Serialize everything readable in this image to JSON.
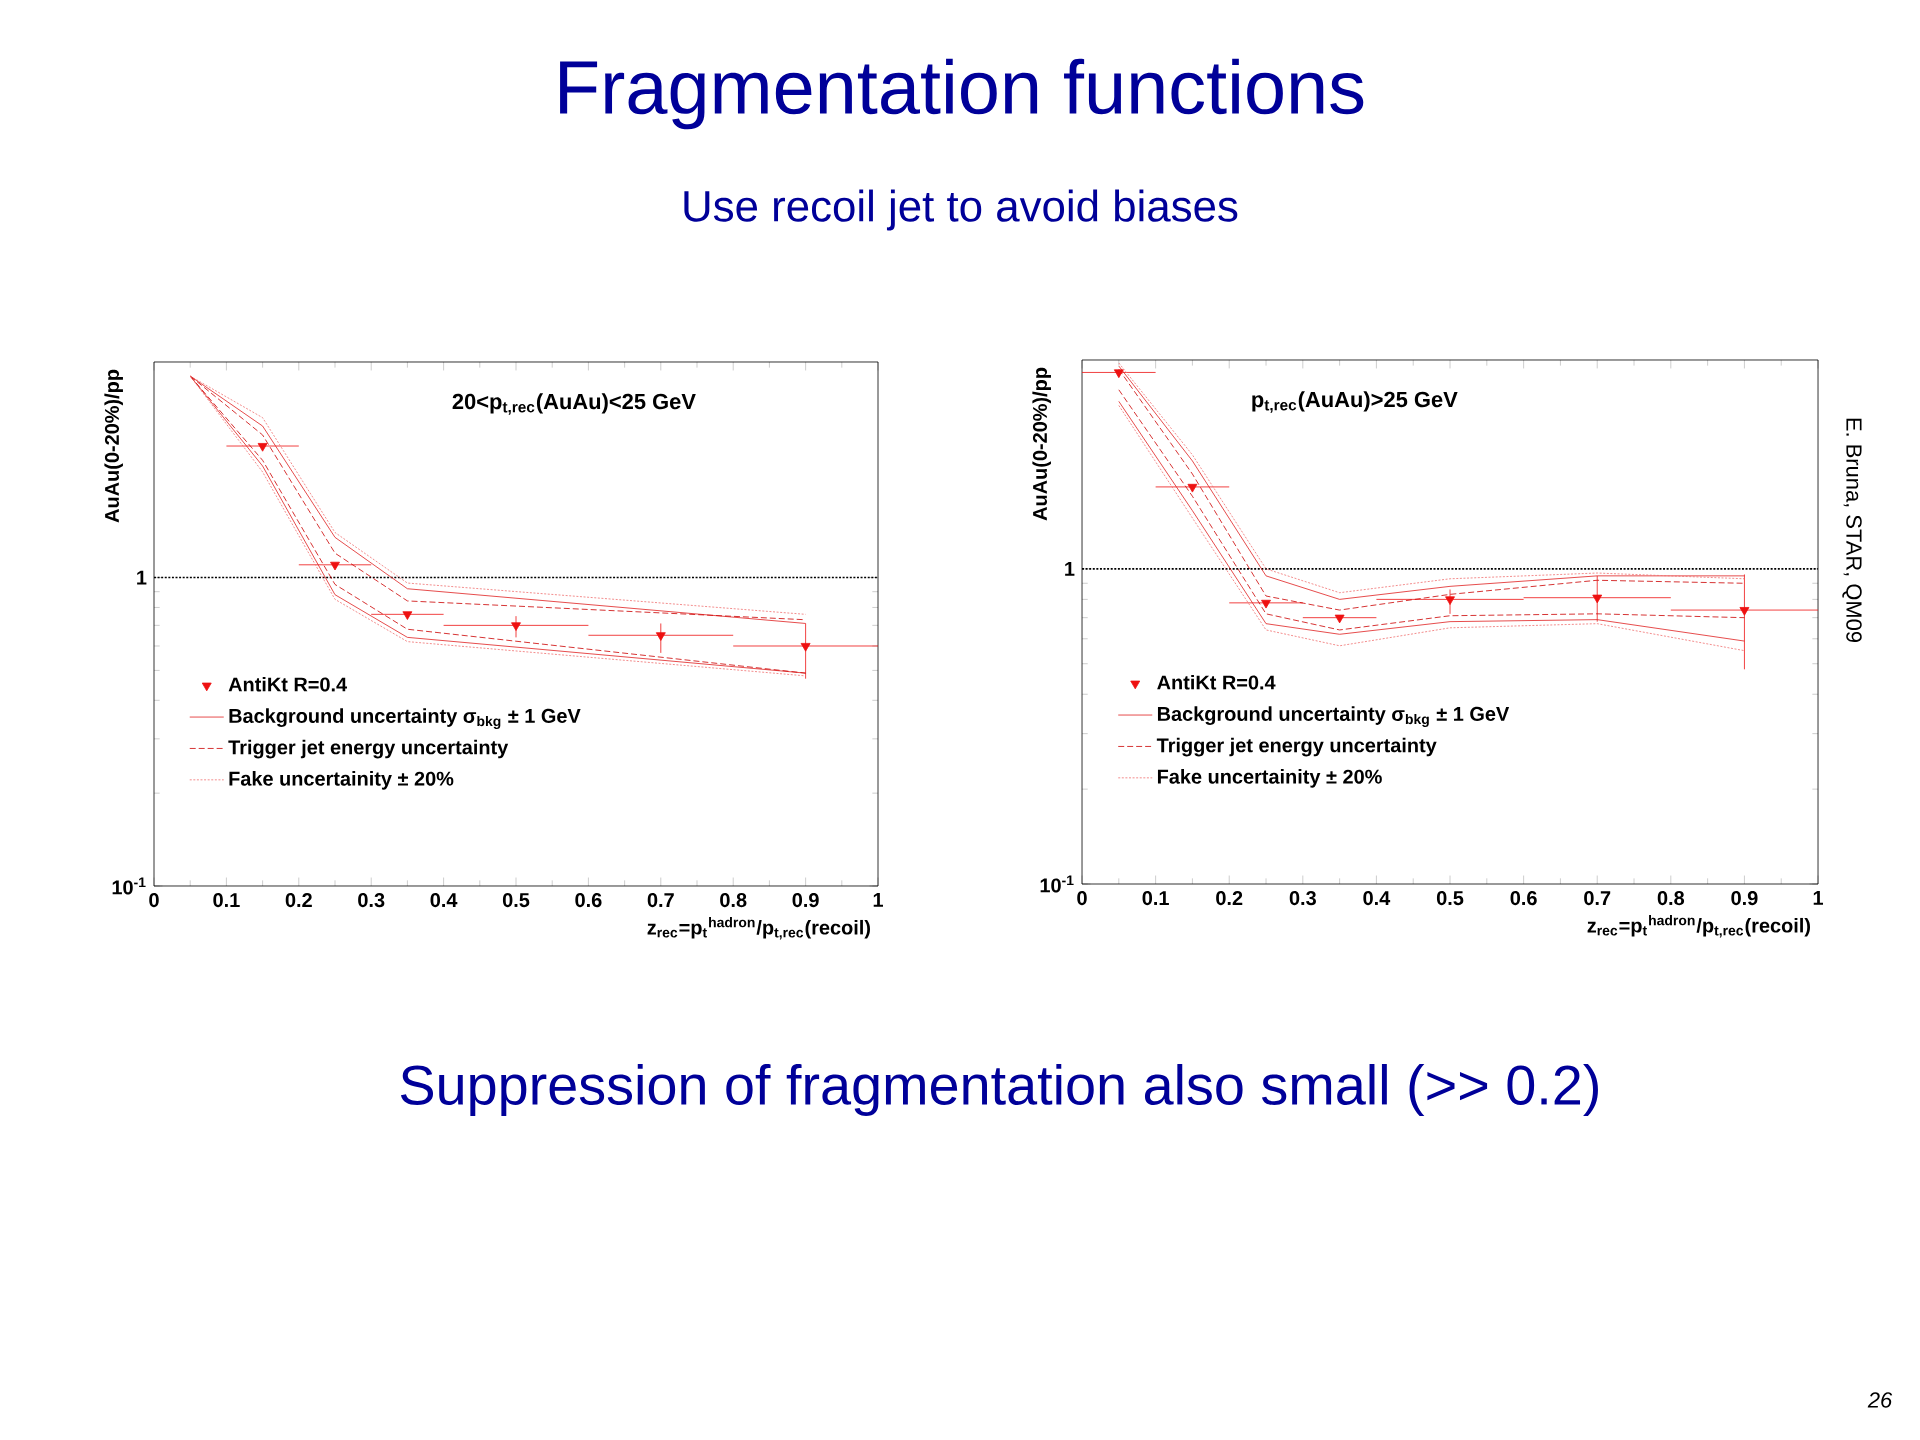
{
  "chart_data": [
    {
      "type": "scatter",
      "title": "Fragmentation functions",
      "subtitle": "Use recoil jet to avoid biases",
      "xlabel": "z$_{rec}$=p$_{t}$$^{hadron}$/p$_{t,rec}$(recoil)",
      "ylabel": "AuAu(0-20%)/pp",
      "log": "y",
      "xlim": [
        0,
        1
      ],
      "ylim": [
        0.1,
        5
      ],
      "xticks": [
        0,
        0.1,
        0.2,
        0.3,
        0.4,
        0.5,
        0.6,
        0.7,
        0.8,
        0.9,
        1
      ],
      "yticks": [
        {
          "value": 0.1,
          "label": "10$^{-1}$"
        },
        1
      ],
      "legend": "bottom left",
      "grid": false,
      "annotations": [
        "20<p$_{t,rec}$(AuAu)<25  GeV"
      ],
      "ref_lines": [
        {
          "axis": "y",
          "value": 1,
          "color": "#000000",
          "line_style": "dotted"
        }
      ],
      "series": [
        {
          "name": "AntiKt R=0.4",
          "marker": "triangle",
          "color": "#ee1111",
          "x": [
            0.15,
            0.25,
            0.35,
            0.5,
            0.7,
            0.9
          ],
          "values": [
            2.67,
            1.1,
            0.76,
            0.7,
            0.65,
            0.6
          ],
          "xerrors": [
            0.05,
            0.05,
            0.05,
            0.1,
            0.1,
            0.1
          ],
          "errors": [
            null,
            null,
            null,
            [
              0.64,
              0.75
            ],
            [
              0.57,
              0.71
            ],
            [
              0.47,
              0.71
            ]
          ]
        },
        {
          "name": "Background uncertainty σ$_{bkg}$ ± 1 GeV",
          "type": "line",
          "line_style": "solid",
          "color": "#e02020",
          "x": [
            0.05,
            0.15,
            0.25,
            0.35,
            0.9
          ],
          "values": [
            4.5,
            3.1,
            1.35,
            0.92,
            0.71
          ]
        },
        {
          "type": "line",
          "line_style": "solid",
          "color": "#e02020",
          "x": [
            0.05,
            0.15,
            0.25,
            0.35,
            0.9
          ],
          "values": [
            4.5,
            2.3,
            0.88,
            0.64,
            0.49
          ]
        },
        {
          "name": "Trigger jet energy uncertainty",
          "type": "line",
          "line_style": "dashed",
          "color": "#cc0000",
          "x": [
            0.05,
            0.15,
            0.25,
            0.35,
            0.9
          ],
          "values": [
            4.5,
            2.9,
            1.2,
            0.84,
            0.73
          ]
        },
        {
          "type": "line",
          "line_style": "dashed",
          "color": "#cc0000",
          "x": [
            0.05,
            0.15,
            0.25,
            0.35,
            0.9
          ],
          "values": [
            4.5,
            2.4,
            0.95,
            0.68,
            0.49
          ]
        },
        {
          "name": "Fake uncertainity ± 20%",
          "type": "line",
          "line_style": "dotted",
          "color": "#f07070",
          "x": [
            0.05,
            0.15,
            0.25,
            0.35,
            0.9
          ],
          "values": [
            4.5,
            3.3,
            1.4,
            0.96,
            0.76
          ]
        },
        {
          "type": "line",
          "line_style": "dotted",
          "color": "#f07070",
          "x": [
            0.05,
            0.15,
            0.25,
            0.35,
            0.9
          ],
          "values": [
            4.5,
            2.2,
            0.85,
            0.62,
            0.48
          ]
        }
      ]
    },
    {
      "type": "scatter",
      "xlabel": "z$_{rec}$=p$_{t}$$^{hadron}$/p$_{t,rec}$(recoil)",
      "ylabel": "AuAu(0-20%)/pp",
      "log": "y",
      "xlim": [
        0,
        1
      ],
      "ylim": [
        0.1,
        4.6
      ],
      "xticks": [
        0,
        0.1,
        0.2,
        0.3,
        0.4,
        0.5,
        0.6,
        0.7,
        0.8,
        0.9,
        1
      ],
      "yticks": [
        {
          "value": 0.1,
          "label": "10$^{-1}$"
        },
        1
      ],
      "legend": "bottom left",
      "grid": false,
      "annotations": [
        "p$_{t,rec}$(AuAu)>25 GeV",
        "E. Bruna, STAR, QM09",
        "Suppression of fragmentation also small (>> 0.2)",
        "26"
      ],
      "ref_lines": [
        {
          "axis": "y",
          "value": 1,
          "color": "#000000",
          "line_style": "dotted"
        }
      ],
      "series": [
        {
          "name": "AntiKt R=0.4",
          "marker": "triangle",
          "color": "#ee1111",
          "x": [
            0.05,
            0.15,
            0.25,
            0.35,
            0.5,
            0.7,
            0.9
          ],
          "values": [
            4.2,
            1.82,
            0.78,
            0.7,
            0.8,
            0.81,
            0.74
          ],
          "xerrors": [
            0.05,
            0.05,
            0.05,
            0.05,
            0.1,
            0.1,
            0.1
          ],
          "errors": [
            null,
            null,
            null,
            null,
            [
              0.72,
              0.86
            ],
            [
              0.68,
              0.95
            ],
            [
              0.48,
              0.96
            ]
          ]
        },
        {
          "name": "Background uncertainty σ$_{bkg}$ ± 1 GeV",
          "type": "line",
          "line_style": "solid",
          "color": "#e02020",
          "x": [
            0.05,
            0.15,
            0.25,
            0.35,
            0.5,
            0.7,
            0.9
          ],
          "values": [
            4.4,
            2.2,
            0.95,
            0.8,
            0.88,
            0.95,
            0.95
          ]
        },
        {
          "type": "line",
          "line_style": "solid",
          "color": "#e02020",
          "x": [
            0.05,
            0.15,
            0.25,
            0.35,
            0.5,
            0.7,
            0.9
          ],
          "values": [
            3.4,
            1.53,
            0.67,
            0.62,
            0.68,
            0.69,
            0.59
          ]
        },
        {
          "name": "Trigger jet energy uncertainty",
          "type": "line",
          "line_style": "dashed",
          "color": "#cc0000",
          "x": [
            0.05,
            0.15,
            0.25,
            0.35,
            0.5,
            0.7,
            0.9
          ],
          "values": [
            4.3,
            2.0,
            0.82,
            0.74,
            0.83,
            0.92,
            0.9
          ]
        },
        {
          "type": "line",
          "line_style": "dashed",
          "color": "#cc0000",
          "x": [
            0.05,
            0.15,
            0.25,
            0.35,
            0.5,
            0.7,
            0.9
          ],
          "values": [
            3.7,
            1.7,
            0.72,
            0.64,
            0.71,
            0.72,
            0.7
          ]
        },
        {
          "name": "Fake uncertainity ± 20%",
          "type": "line",
          "line_style": "dotted",
          "color": "#f07070",
          "x": [
            0.05,
            0.15,
            0.25,
            0.35,
            0.5,
            0.7,
            0.9
          ],
          "values": [
            4.5,
            2.3,
            1.0,
            0.84,
            0.93,
            0.97,
            0.93
          ]
        },
        {
          "type": "line",
          "line_style": "dotted",
          "color": "#f07070",
          "x": [
            0.05,
            0.15,
            0.25,
            0.35,
            0.5,
            0.7,
            0.9
          ],
          "values": [
            3.3,
            1.45,
            0.64,
            0.57,
            0.65,
            0.67,
            0.55
          ]
        }
      ]
    }
  ]
}
